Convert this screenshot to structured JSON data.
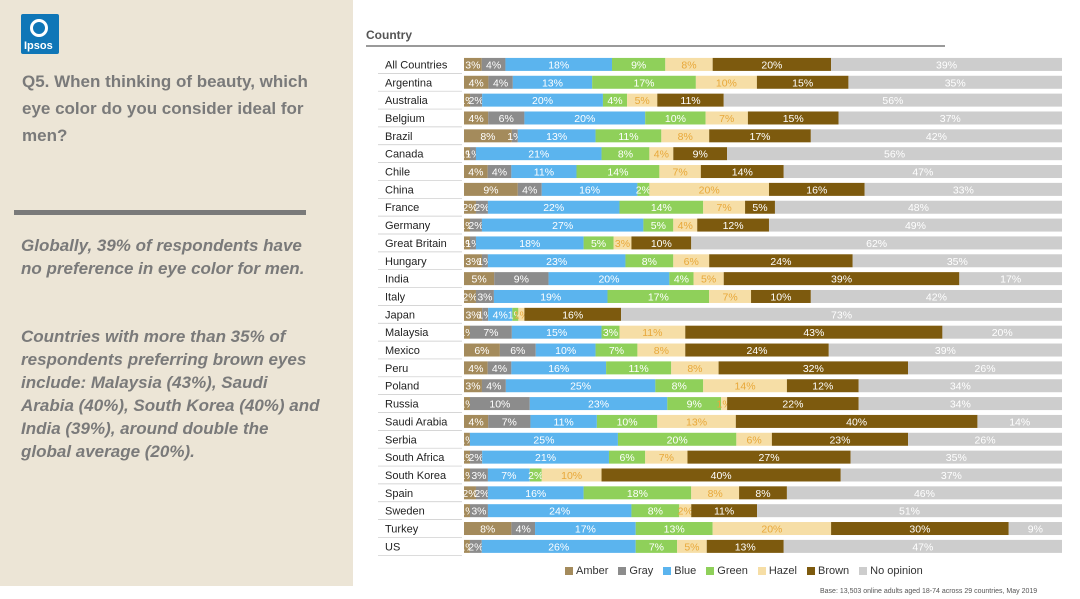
{
  "logo": {
    "text": "Ipsos"
  },
  "question": "Q5. When thinking of beauty, which eye color do you consider ideal for men?",
  "insights": [
    "Globally, 39% of respondents have no preference in eye color for men.",
    "Countries with more than 35% of respondents preferring brown eyes include: Malaysia (43%), Saudi Arabia (40%), South Korea (40%) and India (39%), around double the global average (20%)."
  ],
  "chart_header": "Country",
  "footnote": "Base: 13,503 online adults aged 18-74 across 29 countries, May 2019",
  "colors": {
    "Amber": "#a48b5c",
    "Gray": "#8c8c8c",
    "Blue": "#5bb4ee",
    "Green": "#8fd05a",
    "Hazel": "#f6dea6",
    "Brown": "#7d5a0e",
    "No opinion": "#cdcdcd"
  },
  "chart_data": {
    "type": "bar",
    "stacked": true,
    "orientation": "horizontal",
    "categories": [
      "All Countries",
      "Argentina",
      "Australia",
      "Belgium",
      "Brazil",
      "Canada",
      "Chile",
      "China",
      "France",
      "Germany",
      "Great Britain",
      "Hungary",
      "India",
      "Italy",
      "Japan",
      "Malaysia",
      "Mexico",
      "Peru",
      "Poland",
      "Russia",
      "Saudi Arabia",
      "Serbia",
      "South Africa",
      "South Korea",
      "Spain",
      "Sweden",
      "Turkey",
      "US"
    ],
    "series": [
      {
        "name": "Amber",
        "values": [
          3,
          4,
          1,
          4,
          8,
          1,
          4,
          9,
          2,
          1,
          1,
          3,
          5,
          2,
          3,
          1,
          6,
          4,
          3,
          1,
          4,
          1,
          1,
          1,
          2,
          1,
          8,
          1
        ]
      },
      {
        "name": "Gray",
        "values": [
          4,
          4,
          2,
          6,
          1,
          1,
          4,
          4,
          2,
          2,
          1,
          1,
          9,
          3,
          1,
          7,
          6,
          4,
          4,
          10,
          7,
          0,
          2,
          3,
          2,
          3,
          4,
          2
        ]
      },
      {
        "name": "Blue",
        "values": [
          18,
          13,
          20,
          20,
          13,
          21,
          11,
          16,
          22,
          27,
          18,
          23,
          20,
          19,
          4,
          15,
          10,
          16,
          25,
          23,
          11,
          25,
          21,
          7,
          16,
          24,
          17,
          26
        ]
      },
      {
        "name": "Green",
        "values": [
          9,
          17,
          4,
          10,
          11,
          8,
          14,
          2,
          14,
          5,
          5,
          8,
          4,
          17,
          1,
          3,
          7,
          11,
          8,
          9,
          10,
          20,
          6,
          2,
          18,
          8,
          13,
          7
        ]
      },
      {
        "name": "Hazel",
        "values": [
          8,
          10,
          5,
          7,
          8,
          4,
          7,
          20,
          7,
          4,
          3,
          6,
          5,
          7,
          1,
          11,
          8,
          8,
          14,
          1,
          13,
          6,
          7,
          10,
          8,
          2,
          20,
          5
        ]
      },
      {
        "name": "Brown",
        "values": [
          20,
          15,
          11,
          15,
          17,
          9,
          14,
          16,
          5,
          12,
          10,
          24,
          39,
          10,
          16,
          43,
          24,
          32,
          12,
          22,
          40,
          23,
          27,
          40,
          8,
          11,
          30,
          13
        ]
      },
      {
        "name": "No opinion",
        "values": [
          39,
          35,
          56,
          37,
          42,
          56,
          47,
          33,
          48,
          49,
          62,
          35,
          17,
          42,
          73,
          20,
          39,
          26,
          34,
          34,
          14,
          26,
          35,
          37,
          46,
          51,
          9,
          47
        ]
      }
    ],
    "labels": [
      [
        "3%",
        "4%",
        "18%",
        "9%",
        "8%",
        "20%",
        "39%"
      ],
      [
        "4%",
        "4%",
        "13%",
        "17%",
        "10%",
        "15%",
        "35%"
      ],
      [
        "1%",
        "2%",
        "20%",
        "4%",
        "5%",
        "11%",
        "56%"
      ],
      [
        "4%",
        "6%",
        "20%",
        "10%",
        "7%",
        "15%",
        "37%"
      ],
      [
        "8%",
        "1%",
        "13%",
        "11%",
        "8%",
        "17%",
        "42%"
      ],
      [
        "1%",
        "1%",
        "21%",
        "8%",
        "4%",
        "9%",
        "56%"
      ],
      [
        "4%",
        "4%",
        "11%",
        "14%",
        "7%",
        "14%",
        "47%"
      ],
      [
        "9%",
        "4%",
        "16%",
        "2%",
        "20%",
        "16%",
        "33%"
      ],
      [
        "2%",
        "2%",
        "22%",
        "14%",
        "7%",
        "5%",
        "48%"
      ],
      [
        "1%",
        "2%",
        "27%",
        "5%",
        "4%",
        "12%",
        "49%"
      ],
      [
        "1%",
        "1%",
        "18%",
        "5%",
        "3%",
        "10%",
        "62%"
      ],
      [
        "3%",
        "1%",
        "23%",
        "8%",
        "6%",
        "24%",
        "35%"
      ],
      [
        "5%",
        "9%",
        "20%",
        "4%",
        "5%",
        "39%",
        "17%"
      ],
      [
        "2%",
        "3%",
        "19%",
        "17%",
        "7%",
        "10%",
        "42%"
      ],
      [
        "3%",
        "1%",
        "4%",
        "1%",
        "1%",
        "16%",
        "73%"
      ],
      [
        "1%",
        "7%",
        "15%",
        "3%",
        "11%",
        "43%",
        "20%"
      ],
      [
        "6%",
        "6%",
        "10%",
        "7%",
        "8%",
        "24%",
        "39%"
      ],
      [
        "4%",
        "4%",
        "16%",
        "11%",
        "8%",
        "32%",
        "26%"
      ],
      [
        "3%",
        "4%",
        "25%",
        "8%",
        "14%",
        "12%",
        "34%"
      ],
      [
        "1%",
        "10%",
        "23%",
        "9%",
        "1%",
        "22%",
        "34%"
      ],
      [
        "4%",
        "7%",
        "11%",
        "10%",
        "13%",
        "40%",
        "14%"
      ],
      [
        "1%",
        "",
        "25%",
        "20%",
        "6%",
        "23%",
        "26%"
      ],
      [
        "1%",
        "2%",
        "21%",
        "6%",
        "7%",
        "27%",
        "35%"
      ],
      [
        "1%",
        "3%",
        "7%",
        "2%",
        "10%",
        "40%",
        "37%"
      ],
      [
        "2%",
        "2%",
        "16%",
        "18%",
        "8%",
        "8%",
        "46%"
      ],
      [
        "1%",
        "3%",
        "24%",
        "8%",
        "2%",
        "11%",
        "51%"
      ],
      [
        "8%",
        "4%",
        "17%",
        "13%",
        "20%",
        "30%",
        "9%"
      ],
      [
        "1%",
        "2%",
        "26%",
        "7%",
        "5%",
        "13%",
        "47%"
      ]
    ],
    "legend_position": "bottom",
    "xlim": [
      0,
      100
    ],
    "grid": false
  }
}
